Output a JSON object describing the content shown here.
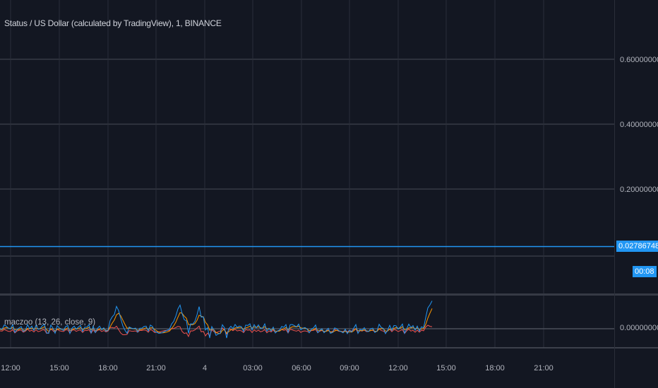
{
  "header": {
    "title": "Status / US Dollar (calculated by TradingView), 1, BINANCE"
  },
  "price_scale": {
    "ticks": [
      "0.60000000",
      "0.40000000",
      "0.20000000"
    ],
    "current_price": "0.02786748",
    "countdown": "00:08"
  },
  "indicator": {
    "label": "maczoo (13, 26, close, 9)",
    "scale_tick": "0.00000000"
  },
  "time_axis": {
    "labels": [
      "12:00",
      "15:00",
      "18:00",
      "21:00",
      "4",
      "03:00",
      "06:00",
      "09:00",
      "12:00",
      "15:00",
      "18:00",
      "21:00"
    ]
  },
  "colors": {
    "background": "#131722",
    "grid": "#2a2e39",
    "price_line": "#2196f3",
    "macd_line": "#2196f3",
    "signal_line": "#ff9800",
    "histogram_negative": "#ef5350",
    "histogram_positive": "#ffffff"
  },
  "chart_data": {
    "type": "line",
    "main": {
      "current_price": 0.02786748,
      "y_ticks": [
        0.2,
        0.4,
        0.6
      ]
    },
    "indicator": {
      "name": "maczoo",
      "params": [
        13,
        26,
        "close",
        9
      ],
      "zero_line": 0
    }
  }
}
